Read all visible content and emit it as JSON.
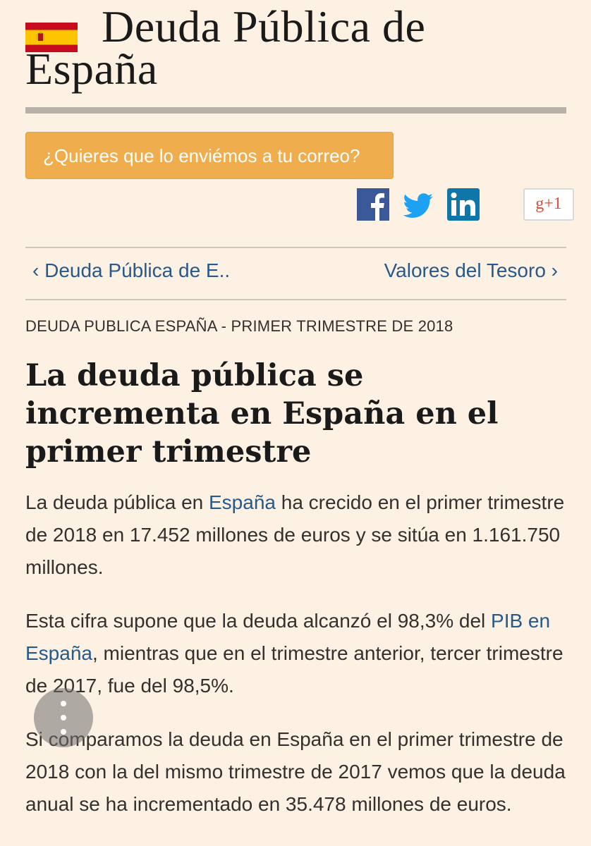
{
  "site": {
    "title": "Deuda Pública de España",
    "flag_icon": "spain-flag-icon"
  },
  "subscribe": {
    "label": "¿Quieres que lo enviémos a tu correo?"
  },
  "social": {
    "facebook": "facebook-icon",
    "twitter": "twitter-icon",
    "linkedin": "linkedin-icon",
    "googleplus_label": "g+1"
  },
  "nav": {
    "prev": "‹ Deuda Pública de E..",
    "next": "Valores del Tesoro ›"
  },
  "article": {
    "kicker": "DEUDA PUBLICA ESPAÑA - PRIMER TRIMESTRE DE 2018",
    "headline": "La deuda pública se incrementa en España en el primer trimestre",
    "p1": {
      "before": "La deuda pública en ",
      "link": "España",
      "after": " ha crecido en el primer trimestre de 2018 en 17.452 millones de euros y se sitúa en 1.161.750 millones."
    },
    "p2": {
      "before": "Esta cifra supone que la deuda alcanzó el 98,3% del ",
      "link": "PIB en España",
      "after": ", mientras que en el trimestre anterior, tercer trimestre de 2017, fue del 98,5%."
    },
    "p3": "Si comparamos la deuda en España en el primer trimestre de 2018 con la del mismo trimestre de 2017 vemos que la deuda anual se ha incrementado en 35.478 millones de euros."
  },
  "colors": {
    "background": "#fdf1e4",
    "link": "#27598b",
    "button": "#f0ad4e",
    "rule": "#b8b1a9"
  }
}
